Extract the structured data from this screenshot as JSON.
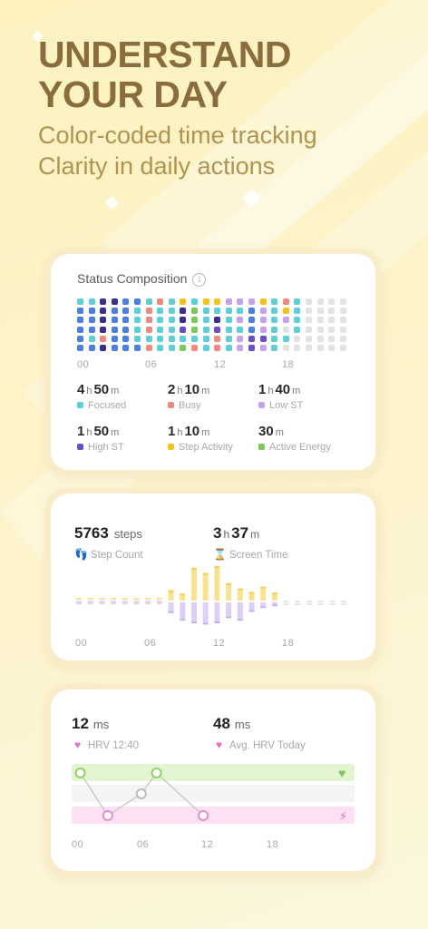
{
  "hero": {
    "title_line1": "UNDERSTAND",
    "title_line2": "YOUR DAY",
    "subtitle_line1": "Color-coded time tracking",
    "subtitle_line2": "Clarity in daily actions"
  },
  "composition": {
    "title": "Status Composition",
    "axis": [
      "00",
      "06",
      "12",
      "18"
    ],
    "colors": {
      "focused": "#5ecfd6",
      "busy": "#f08a80",
      "low": "#c4a3ec",
      "high": "#6a4fc7",
      "step": "#f5c21a",
      "active": "#7ec85a",
      "deep": "#3c2f8c",
      "blue": "#4b7fe0",
      "empty": "#e3e3e3"
    },
    "stats": [
      {
        "h": "4",
        "m": "50",
        "label": "Focused",
        "color": "#5ecfd6"
      },
      {
        "h": "2",
        "m": "10",
        "label": "Busy",
        "color": "#f08a80"
      },
      {
        "h": "1",
        "m": "40",
        "label": "Low ST",
        "color": "#c4a3ec"
      },
      {
        "h": "1",
        "m": "50",
        "label": "High ST",
        "color": "#6a4fc7"
      },
      {
        "h": "1",
        "m": "10",
        "label": "Step Activity",
        "color": "#f5c21a"
      },
      {
        "h": "",
        "m": "30",
        "label": "Active Energy",
        "color": "#7ec85a"
      }
    ],
    "units": {
      "h": "h",
      "m": "m"
    }
  },
  "activity": {
    "steps_value": "5763",
    "steps_unit": "steps",
    "steps_label": "Step Count",
    "screen_h": "3",
    "screen_m": "37",
    "screen_label": "Screen Time",
    "axis": [
      "00",
      "06",
      "12",
      "18"
    ],
    "step_color": "#f9e28e",
    "screen_color": "#ddd0f5",
    "steps_by_slot": [
      0,
      0,
      0,
      0,
      0,
      0,
      0,
      0,
      0.25,
      0.15,
      0.9,
      0.75,
      0.95,
      0.45,
      0.3,
      0.2,
      0.35,
      0.18,
      0,
      0,
      0,
      0,
      0,
      0
    ],
    "screen_by_slot": [
      0,
      0,
      0,
      0,
      0,
      0,
      0,
      0,
      0.35,
      0.65,
      0.75,
      0.8,
      0.75,
      0.55,
      0.65,
      0.3,
      0.15,
      0.08,
      0,
      0,
      0,
      0,
      0,
      0
    ]
  },
  "hrv": {
    "value": "12",
    "unit": "ms",
    "label": "HRV 12:40",
    "avg_value": "48",
    "avg_unit": "ms",
    "avg_label": "Avg. HRV Today",
    "axis": [
      "00",
      "06",
      "12",
      "18"
    ],
    "points": [
      {
        "t": 0.5,
        "zone": "high"
      },
      {
        "t": 3.2,
        "zone": "low"
      },
      {
        "t": 6.5,
        "zone": "mid"
      },
      {
        "t": 8.0,
        "zone": "high"
      },
      {
        "t": 12.6,
        "zone": "low"
      }
    ],
    "high_color": "#e3f5d0",
    "mid_color": "#f4f4f4",
    "low_color": "#fde0f3"
  }
}
